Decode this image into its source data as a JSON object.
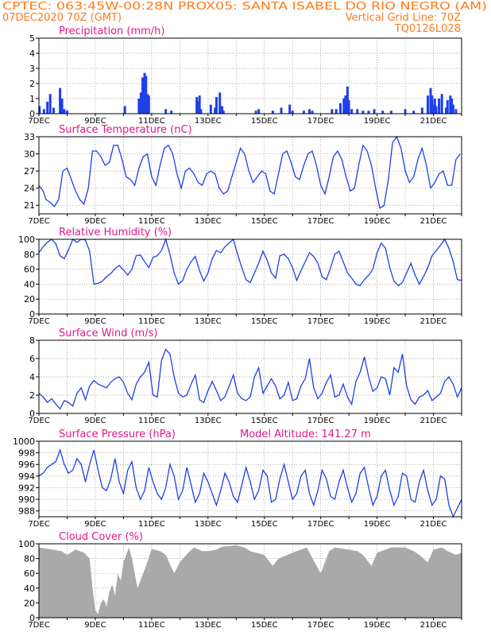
{
  "header": {
    "line1": "CPTEC:   063:45W-00:28N   PROX05: SANTA ISABEL DO RIO NEGRO (AM)",
    "line2_left": "07DEC2020 70Z (GMT)",
    "line2_right": "Vertical Grid Line: 70Z",
    "line3_right": "TQ0126L028"
  },
  "colors": {
    "header": "#ff7a1a",
    "title": "#e0188c",
    "series": "#1f3fe8",
    "cloud": "#a9a9a9",
    "grid": "#909090"
  },
  "x_axis": {
    "labels": [
      "7DEC",
      "9DEC",
      "11DEC",
      "13DEC",
      "15DEC",
      "17DEC",
      "19DEC",
      "21DEC"
    ],
    "label_days": [
      0,
      2,
      4,
      6,
      8,
      10,
      12,
      14
    ],
    "minor_label": "20"
  },
  "chart_data": [
    {
      "type": "bar",
      "title": "Precipitation (mm/h)",
      "ylim": [
        0,
        5
      ],
      "yticks": [
        "0",
        "1",
        "2",
        "3",
        "4",
        "5"
      ],
      "x_days": [
        0.02,
        0.18,
        0.3,
        0.4,
        0.52,
        0.75,
        0.82,
        0.9,
        1.0,
        3.05,
        3.55,
        3.62,
        3.68,
        3.75,
        3.8,
        3.85,
        3.9,
        4.5,
        4.7,
        5.6,
        5.65,
        5.7,
        5.75,
        6.1,
        6.25,
        6.3,
        6.42,
        6.5,
        6.55,
        7.7,
        7.8,
        8.3,
        8.6,
        8.9,
        9.0,
        9.4,
        9.6,
        9.7,
        10.4,
        10.55,
        10.7,
        10.82,
        10.88,
        10.95,
        11.0,
        11.1,
        11.3,
        11.5,
        11.7,
        11.9,
        12.2,
        12.5,
        13.0,
        13.3,
        13.6,
        13.8,
        13.9,
        13.95,
        14.0,
        14.05,
        14.1,
        14.2,
        14.3,
        14.45,
        14.5,
        14.6,
        14.65,
        14.7,
        14.8
      ],
      "values": [
        0.5,
        0.3,
        0.8,
        1.3,
        0.4,
        1.7,
        1.0,
        0.3,
        0.2,
        0.5,
        1.0,
        1.4,
        2.4,
        2.7,
        2.5,
        1.3,
        1.2,
        0.3,
        0.2,
        1.1,
        0.8,
        1.2,
        0.3,
        0.6,
        0.4,
        1.1,
        1.4,
        0.5,
        0.2,
        0.2,
        0.3,
        0.2,
        0.4,
        0.6,
        0.2,
        0.2,
        0.3,
        0.2,
        0.3,
        0.3,
        0.7,
        1.0,
        1.2,
        1.8,
        0.9,
        0.3,
        0.3,
        0.2,
        0.2,
        0.3,
        0.2,
        0.2,
        0.3,
        0.2,
        0.4,
        1.2,
        1.7,
        1.2,
        0.6,
        1.0,
        0.5,
        1.0,
        1.3,
        0.4,
        0.9,
        1.2,
        1.0,
        0.6,
        0.3
      ]
    },
    {
      "type": "line",
      "title": "Surface Temperature (nC)",
      "ylim": [
        19.5,
        33
      ],
      "yticks": [
        "21",
        "24",
        "27",
        "30",
        "33"
      ],
      "x_days": [
        0.0,
        0.15,
        0.25,
        0.4,
        0.55,
        0.7,
        0.85,
        1.0,
        1.15,
        1.3,
        1.45,
        1.6,
        1.75,
        1.9,
        2.05,
        2.2,
        2.35,
        2.5,
        2.65,
        2.8,
        2.95,
        3.1,
        3.25,
        3.4,
        3.55,
        3.7,
        3.85,
        4.0,
        4.15,
        4.3,
        4.45,
        4.6,
        4.75,
        4.9,
        5.05,
        5.2,
        5.35,
        5.5,
        5.65,
        5.8,
        5.95,
        6.1,
        6.25,
        6.4,
        6.55,
        6.7,
        6.85,
        7.0,
        7.15,
        7.3,
        7.45,
        7.6,
        7.75,
        7.9,
        8.05,
        8.2,
        8.35,
        8.5,
        8.65,
        8.8,
        8.95,
        9.1,
        9.25,
        9.4,
        9.55,
        9.7,
        9.85,
        10.0,
        10.15,
        10.3,
        10.45,
        10.6,
        10.75,
        10.9,
        11.05,
        11.2,
        11.35,
        11.5,
        11.65,
        11.8,
        11.95,
        12.1,
        12.25,
        12.4,
        12.55,
        12.7,
        12.85,
        13.0,
        13.15,
        13.3,
        13.45,
        13.6,
        13.75,
        13.9,
        14.05,
        14.2,
        14.35,
        14.5,
        14.65,
        14.8,
        14.95
      ],
      "values": [
        24.5,
        23.5,
        22.0,
        21.5,
        20.8,
        22.0,
        27.0,
        27.5,
        25.5,
        23.5,
        22.0,
        21.2,
        24.0,
        30.5,
        30.5,
        29.5,
        28.0,
        28.5,
        31.5,
        31.5,
        29.0,
        26.0,
        25.5,
        24.5,
        27.5,
        29.5,
        30.0,
        26.0,
        24.5,
        28.0,
        31.0,
        31.5,
        30.0,
        26.5,
        24.0,
        27.0,
        27.5,
        26.5,
        25.0,
        24.5,
        26.5,
        27.0,
        26.5,
        24.0,
        23.0,
        23.5,
        26.0,
        28.5,
        31.0,
        30.0,
        27.0,
        25.0,
        26.0,
        27.0,
        26.5,
        23.5,
        23.0,
        26.5,
        30.0,
        30.5,
        28.5,
        26.0,
        25.5,
        28.0,
        30.0,
        30.5,
        28.0,
        24.5,
        23.0,
        26.0,
        29.5,
        30.5,
        29.0,
        26.0,
        23.5,
        24.0,
        28.0,
        31.5,
        30.5,
        28.0,
        24.0,
        20.5,
        21.0,
        25.5,
        32.0,
        33.0,
        31.0,
        27.0,
        25.0,
        26.0,
        29.0,
        31.0,
        28.0,
        24.0,
        25.0,
        26.5,
        27.0,
        24.5,
        24.5,
        29.0,
        30.0
      ]
    },
    {
      "type": "line",
      "title": "Relative Humidity (%)",
      "ylim": [
        0,
        100
      ],
      "yticks": [
        "0",
        "20",
        "40",
        "60",
        "80",
        "100"
      ],
      "x_days": [
        0.0,
        0.15,
        0.3,
        0.45,
        0.6,
        0.75,
        0.9,
        1.05,
        1.2,
        1.35,
        1.5,
        1.65,
        1.8,
        1.95,
        2.1,
        2.25,
        2.4,
        2.55,
        2.7,
        2.85,
        3.0,
        3.15,
        3.3,
        3.45,
        3.6,
        3.75,
        3.9,
        4.05,
        4.2,
        4.35,
        4.5,
        4.65,
        4.8,
        4.95,
        5.1,
        5.25,
        5.4,
        5.55,
        5.7,
        5.85,
        6.0,
        6.15,
        6.3,
        6.45,
        6.6,
        6.75,
        6.9,
        7.05,
        7.2,
        7.35,
        7.5,
        7.65,
        7.8,
        7.95,
        8.1,
        8.25,
        8.4,
        8.55,
        8.7,
        8.85,
        9.0,
        9.15,
        9.3,
        9.45,
        9.6,
        9.75,
        9.9,
        10.05,
        10.2,
        10.35,
        10.5,
        10.65,
        10.8,
        10.95,
        11.1,
        11.25,
        11.4,
        11.55,
        11.7,
        11.85,
        12.0,
        12.15,
        12.3,
        12.45,
        12.6,
        12.75,
        12.9,
        13.05,
        13.2,
        13.35,
        13.5,
        13.65,
        13.8,
        13.95,
        14.1,
        14.25,
        14.4,
        14.55,
        14.7,
        14.85,
        15.0
      ],
      "values": [
        82,
        90,
        96,
        100,
        94,
        78,
        74,
        86,
        100,
        96,
        100,
        99,
        84,
        40,
        41,
        44,
        50,
        54,
        61,
        65,
        59,
        52,
        60,
        78,
        79,
        70,
        62,
        76,
        78,
        85,
        100,
        80,
        55,
        40,
        45,
        60,
        70,
        77,
        58,
        44,
        55,
        74,
        85,
        82,
        90,
        95,
        100,
        80,
        62,
        46,
        42,
        55,
        68,
        84,
        72,
        55,
        48,
        78,
        80,
        74,
        62,
        45,
        58,
        70,
        82,
        77,
        68,
        50,
        46,
        62,
        80,
        84,
        70,
        55,
        48,
        40,
        38,
        46,
        52,
        60,
        82,
        95,
        88,
        62,
        44,
        38,
        42,
        55,
        68,
        52,
        40,
        50,
        62,
        78,
        85,
        92,
        100,
        88,
        70,
        46,
        45
      ]
    },
    {
      "type": "line",
      "title": "Surface Wind (m/s)",
      "ylim": [
        0,
        8
      ],
      "yticks": [
        "0",
        "2",
        "4",
        "6",
        "8"
      ],
      "x_days": [
        0.0,
        0.15,
        0.3,
        0.45,
        0.6,
        0.75,
        0.9,
        1.05,
        1.2,
        1.35,
        1.5,
        1.65,
        1.8,
        1.95,
        2.1,
        2.25,
        2.4,
        2.55,
        2.7,
        2.85,
        3.0,
        3.15,
        3.3,
        3.45,
        3.6,
        3.75,
        3.9,
        4.05,
        4.2,
        4.35,
        4.5,
        4.65,
        4.8,
        4.95,
        5.1,
        5.25,
        5.4,
        5.55,
        5.7,
        5.85,
        6.0,
        6.15,
        6.3,
        6.45,
        6.6,
        6.75,
        6.9,
        7.05,
        7.2,
        7.35,
        7.5,
        7.65,
        7.8,
        7.95,
        8.1,
        8.25,
        8.4,
        8.55,
        8.7,
        8.85,
        9.0,
        9.15,
        9.3,
        9.45,
        9.6,
        9.75,
        9.9,
        10.05,
        10.2,
        10.35,
        10.5,
        10.65,
        10.8,
        10.95,
        11.1,
        11.25,
        11.4,
        11.55,
        11.7,
        11.85,
        12.0,
        12.15,
        12.3,
        12.45,
        12.6,
        12.75,
        12.9,
        13.05,
        13.2,
        13.35,
        13.5,
        13.65,
        13.8,
        13.95,
        14.1,
        14.25,
        14.4,
        14.55,
        14.7,
        14.85,
        15.0
      ],
      "values": [
        2.2,
        1.8,
        1.2,
        1.6,
        1.0,
        0.5,
        1.4,
        1.2,
        0.8,
        2.2,
        2.8,
        1.5,
        3.0,
        3.6,
        3.2,
        3.0,
        2.8,
        3.4,
        3.8,
        4.0,
        3.4,
        2.2,
        1.5,
        3.2,
        4.0,
        4.5,
        5.6,
        2.0,
        1.8,
        5.8,
        7.0,
        6.5,
        4.0,
        2.2,
        1.8,
        2.0,
        3.2,
        4.2,
        1.5,
        1.2,
        2.5,
        3.5,
        2.5,
        1.4,
        1.8,
        3.0,
        4.2,
        2.2,
        1.6,
        1.4,
        1.8,
        4.0,
        5.0,
        2.2,
        3.0,
        3.8,
        3.0,
        1.6,
        2.0,
        3.4,
        1.4,
        1.6,
        3.0,
        3.8,
        6.0,
        2.8,
        1.6,
        2.2,
        3.4,
        4.2,
        1.8,
        2.0,
        3.2,
        1.8,
        1.0,
        3.5,
        4.5,
        6.2,
        4.0,
        2.4,
        2.8,
        4.0,
        3.8,
        2.0,
        5.0,
        4.5,
        6.5,
        3.0,
        1.5,
        1.0,
        1.8,
        2.0,
        2.5,
        1.4,
        1.8,
        2.2,
        3.5,
        4.0,
        3.2,
        1.8,
        2.8
      ]
    },
    {
      "type": "line",
      "title": "Surface Pressure (hPa)",
      "subtitle": "Model Altitude: 141.27 m",
      "ylim": [
        987,
        1000
      ],
      "yticks": [
        "988",
        "990",
        "992",
        "994",
        "996",
        "998",
        "1000"
      ],
      "x_days": [
        0.0,
        0.15,
        0.3,
        0.45,
        0.6,
        0.75,
        0.9,
        1.05,
        1.2,
        1.35,
        1.5,
        1.65,
        1.8,
        1.95,
        2.1,
        2.25,
        2.4,
        2.55,
        2.7,
        2.85,
        3.0,
        3.15,
        3.3,
        3.45,
        3.6,
        3.75,
        3.9,
        4.05,
        4.2,
        4.35,
        4.5,
        4.65,
        4.8,
        4.95,
        5.1,
        5.25,
        5.4,
        5.55,
        5.7,
        5.85,
        6.0,
        6.15,
        6.3,
        6.45,
        6.6,
        6.75,
        6.9,
        7.05,
        7.2,
        7.35,
        7.5,
        7.65,
        7.8,
        7.95,
        8.1,
        8.25,
        8.4,
        8.55,
        8.7,
        8.85,
        9.0,
        9.15,
        9.3,
        9.45,
        9.6,
        9.75,
        9.9,
        10.05,
        10.2,
        10.35,
        10.5,
        10.65,
        10.8,
        10.95,
        11.1,
        11.25,
        11.4,
        11.55,
        11.7,
        11.85,
        12.0,
        12.15,
        12.3,
        12.45,
        12.6,
        12.75,
        12.9,
        13.05,
        13.2,
        13.35,
        13.5,
        13.65,
        13.8,
        13.95,
        14.1,
        14.25,
        14.4,
        14.55,
        14.7,
        14.85,
        15.0
      ],
      "values": [
        994.0,
        994.5,
        995.5,
        996.0,
        996.5,
        998.5,
        996.0,
        994.5,
        995.0,
        997.0,
        996.0,
        993.0,
        996.0,
        998.5,
        995.0,
        992.0,
        991.5,
        993.5,
        997.0,
        993.0,
        991.0,
        995.0,
        996.5,
        992.0,
        990.0,
        991.5,
        995.5,
        993.0,
        991.0,
        990.0,
        992.0,
        996.0,
        994.0,
        990.0,
        991.5,
        995.5,
        992.5,
        989.5,
        991.0,
        994.5,
        993.0,
        991.0,
        989.0,
        991.5,
        994.5,
        993.0,
        990.5,
        989.5,
        992.5,
        995.5,
        993.0,
        990.0,
        991.5,
        995.0,
        994.0,
        989.5,
        990.0,
        993.5,
        996.0,
        993.0,
        990.0,
        991.0,
        994.0,
        995.0,
        991.0,
        989.0,
        991.5,
        995.0,
        993.5,
        990.5,
        990.0,
        993.0,
        995.0,
        992.0,
        989.5,
        991.0,
        994.5,
        995.5,
        992.0,
        989.0,
        990.5,
        994.0,
        995.0,
        991.5,
        989.0,
        990.5,
        994.5,
        994.0,
        990.0,
        989.5,
        993.0,
        995.0,
        991.5,
        989.0,
        990.0,
        994.0,
        993.5,
        989.0,
        987.0,
        988.5,
        990.0
      ]
    },
    {
      "type": "area",
      "title": "Cloud Cover (%)",
      "ylim": [
        0,
        100
      ],
      "yticks": [
        "0",
        "20",
        "40",
        "60",
        "80",
        "100"
      ],
      "x_days": [
        0.0,
        0.5,
        0.8,
        1.0,
        1.3,
        1.6,
        1.8,
        1.9,
        2.0,
        2.1,
        2.2,
        2.3,
        2.4,
        2.5,
        2.6,
        2.7,
        2.8,
        2.9,
        3.0,
        3.1,
        3.2,
        3.3,
        3.5,
        3.8,
        4.0,
        4.3,
        4.5,
        4.8,
        5.0,
        5.3,
        5.5,
        5.8,
        6.0,
        6.3,
        6.5,
        7.0,
        7.3,
        7.5,
        8.0,
        8.3,
        8.5,
        9.0,
        9.3,
        9.5,
        10.0,
        10.3,
        10.5,
        11.0,
        11.3,
        11.5,
        11.8,
        12.0,
        12.3,
        12.5,
        13.0,
        13.3,
        13.5,
        13.8,
        14.0,
        14.3,
        14.5,
        14.8,
        15.0
      ],
      "values": [
        95,
        92,
        90,
        85,
        92,
        88,
        80,
        40,
        10,
        5,
        20,
        25,
        15,
        35,
        45,
        30,
        60,
        50,
        75,
        85,
        95,
        80,
        40,
        70,
        93,
        90,
        85,
        60,
        75,
        88,
        95,
        90,
        90,
        92,
        96,
        98,
        95,
        90,
        85,
        70,
        80,
        88,
        92,
        95,
        60,
        90,
        95,
        92,
        90,
        85,
        70,
        88,
        92,
        95,
        95,
        90,
        85,
        75,
        92,
        95,
        90,
        85,
        88
      ]
    }
  ]
}
